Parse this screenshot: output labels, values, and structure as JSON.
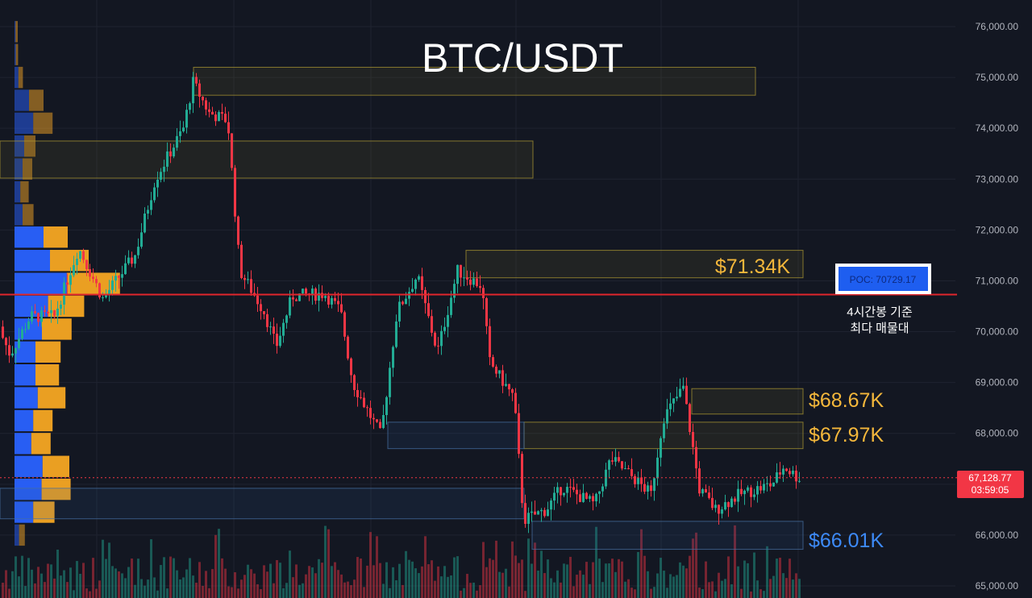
{
  "chart_data": {
    "type": "candlestick",
    "title": "BTC/USDT",
    "y_axis": {
      "ticks": [
        "76,000.00",
        "75,000.00",
        "74,000.00",
        "73,000.00",
        "72,000.00",
        "71,000.00",
        "70,000.00",
        "69,000.00",
        "68,000.00",
        "67,000.00",
        "66,000.00",
        "65,000.00"
      ],
      "tick_values": [
        76000,
        75000,
        74000,
        73000,
        72000,
        71000,
        70000,
        69000,
        68000,
        67000,
        66000,
        65000
      ],
      "range": [
        64900,
        76300
      ],
      "position": "right"
    },
    "last_price": {
      "label": "67,128.77",
      "value": 67128.77,
      "countdown": "03:59:05",
      "color": "#f23645"
    },
    "poc": {
      "label": "POC: 70729.17",
      "value": 70729.17,
      "line_color": "#e1262c",
      "note_line1": "4시간봉 기준",
      "note_line2": "최다 매물대"
    },
    "level_labels": [
      {
        "text": "$71.34K",
        "value": 71340,
        "color": "#f4b73b"
      },
      {
        "text": "$68.67K",
        "value": 68670,
        "color": "#f4b73b"
      },
      {
        "text": "$67.97K",
        "value": 67970,
        "color": "#f4b73b"
      },
      {
        "text": "$66.01K",
        "value": 66010,
        "color": "#3d8af7"
      }
    ],
    "zones": [
      {
        "kind": "supply",
        "top": 75200,
        "bottom": 74650
      },
      {
        "kind": "supply",
        "top": 73750,
        "bottom": 73020
      },
      {
        "kind": "supply",
        "top": 71600,
        "bottom": 71060
      },
      {
        "kind": "supply",
        "top": 68880,
        "bottom": 68380
      },
      {
        "kind": "supply",
        "top": 68220,
        "bottom": 67700
      },
      {
        "kind": "demand",
        "top": 68220,
        "bottom": 67700
      },
      {
        "kind": "demand",
        "top": 66920,
        "bottom": 66320
      },
      {
        "kind": "demand",
        "top": 66270,
        "bottom": 65720
      }
    ],
    "volume_profile": [
      {
        "price": 75900,
        "blue": 3,
        "orange": 7
      },
      {
        "price": 75450,
        "blue": 4,
        "orange": 7
      },
      {
        "price": 75000,
        "blue": 12,
        "orange": 14
      },
      {
        "price": 74550,
        "blue": 45,
        "orange": 45
      },
      {
        "price": 74100,
        "blue": 58,
        "orange": 60
      },
      {
        "price": 73650,
        "blue": 30,
        "orange": 35
      },
      {
        "price": 73200,
        "blue": 25,
        "orange": 30
      },
      {
        "price": 72750,
        "blue": 18,
        "orange": 26
      },
      {
        "price": 72300,
        "blue": 25,
        "orange": 34
      },
      {
        "price": 71860,
        "blue": 90,
        "orange": 75
      },
      {
        "price": 71400,
        "blue": 110,
        "orange": 120
      },
      {
        "price": 70950,
        "blue": 162,
        "orange": 165
      },
      {
        "price": 70500,
        "blue": 104,
        "orange": 112
      },
      {
        "price": 70050,
        "blue": 85,
        "orange": 92
      },
      {
        "price": 69600,
        "blue": 65,
        "orange": 78
      },
      {
        "price": 69150,
        "blue": 65,
        "orange": 73
      },
      {
        "price": 68700,
        "blue": 72,
        "orange": 86
      },
      {
        "price": 68250,
        "blue": 58,
        "orange": 60
      },
      {
        "price": 67800,
        "blue": 52,
        "orange": 60
      },
      {
        "price": 67350,
        "blue": 87,
        "orange": 83
      },
      {
        "price": 66900,
        "blue": 84,
        "orange": 90
      },
      {
        "price": 66450,
        "blue": 58,
        "orange": 66
      },
      {
        "price": 66000,
        "blue": 14,
        "orange": 18
      }
    ],
    "colors": {
      "up": "#22ab94",
      "down": "#f23645",
      "profile_buy": "#2962ff",
      "profile_sell": "#f5a623",
      "grid": "#1f2330",
      "axis_text": "#b2b5be",
      "background": "#131722"
    }
  }
}
